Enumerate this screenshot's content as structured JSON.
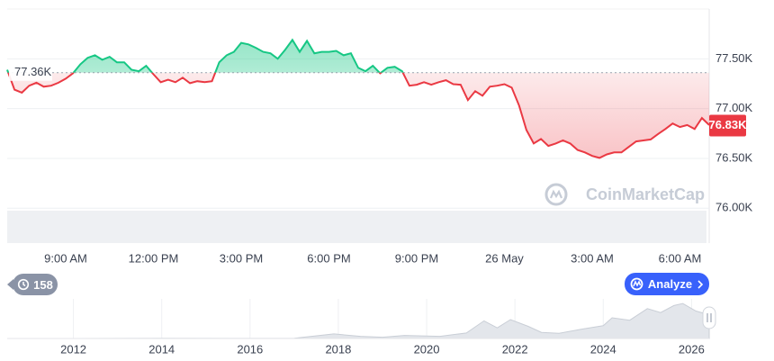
{
  "chart_data": [
    {
      "type": "line",
      "x": [
        7,
        7.25,
        7.5,
        7.75,
        8,
        8.25,
        8.5,
        8.75,
        9,
        9.25,
        9.5,
        9.75,
        10,
        10.25,
        10.5,
        10.75,
        11,
        11.25,
        11.5,
        11.75,
        12,
        12.25,
        12.5,
        12.75,
        13,
        13.25,
        13.5,
        13.75,
        14,
        14.25,
        14.5,
        14.75,
        15,
        15.25,
        15.5,
        15.75,
        16,
        16.25,
        16.5,
        16.75,
        17,
        17.25,
        17.5,
        17.75,
        18,
        18.25,
        18.5,
        18.75,
        19,
        19.25,
        19.5,
        19.75,
        20,
        20.25,
        20.5,
        20.75,
        21,
        21.25,
        21.5,
        21.75,
        22,
        22.25,
        22.5,
        22.75,
        23,
        23.25,
        23.5,
        23.75,
        24,
        24.25,
        24.5,
        24.75,
        25,
        25.25,
        25.5,
        25.75,
        26,
        26.25,
        26.5,
        26.75,
        27,
        27.25,
        27.5,
        27.75,
        28,
        28.25,
        28.5,
        28.75,
        29,
        29.25,
        29.5,
        29.75,
        30,
        30.25,
        30.5,
        30.75,
        31
      ],
      "values": [
        77390,
        77190,
        77160,
        77230,
        77260,
        77220,
        77230,
        77260,
        77300,
        77355,
        77445,
        77510,
        77535,
        77490,
        77520,
        77465,
        77465,
        77390,
        77375,
        77430,
        77345,
        77265,
        77290,
        77265,
        77310,
        77255,
        77275,
        77265,
        77275,
        77465,
        77535,
        77570,
        77660,
        77645,
        77610,
        77570,
        77555,
        77500,
        77590,
        77690,
        77570,
        77680,
        77555,
        77570,
        77570,
        77580,
        77535,
        77555,
        77410,
        77375,
        77430,
        77355,
        77410,
        77420,
        77375,
        77230,
        77240,
        77265,
        77240,
        77265,
        77285,
        77245,
        77240,
        77085,
        77175,
        77130,
        77220,
        77230,
        77245,
        77210,
        77030,
        76785,
        76650,
        76695,
        76625,
        76650,
        76680,
        76650,
        76585,
        76560,
        76525,
        76505,
        76540,
        76560,
        76560,
        76615,
        76670,
        76680,
        76690,
        76745,
        76795,
        76850,
        76815,
        76835,
        76795,
        76905,
        76835
      ],
      "color_up": "#16c784",
      "color_down": "#ea3943",
      "xlim": [
        7,
        31
      ],
      "xticks": [
        {
          "value": 9,
          "label": "9:00 AM"
        },
        {
          "value": 12,
          "label": "12:00 PM"
        },
        {
          "value": 15,
          "label": "3:00 PM"
        },
        {
          "value": 18,
          "label": "6:00 PM"
        },
        {
          "value": 21,
          "label": "9:00 PM"
        },
        {
          "value": 24,
          "label": "26 May"
        },
        {
          "value": 27,
          "label": "3:00 AM"
        },
        {
          "value": 30,
          "label": "6:00 AM"
        }
      ],
      "ylim": [
        75650,
        78000
      ],
      "yticks": [
        {
          "value": 76000,
          "label": "76.00K"
        },
        {
          "value": 76500,
          "label": "76.50K"
        },
        {
          "value": 77000,
          "label": "77.00K"
        },
        {
          "value": 77500,
          "label": "77.50K"
        }
      ],
      "grid": true,
      "baseline": {
        "value": 77360,
        "label": "77.36K"
      },
      "last_price": {
        "value": 76830,
        "label": "76.83K"
      },
      "watermark": "CoinMarketCap"
    },
    {
      "type": "area",
      "x": [
        2010.5,
        2012,
        2014,
        2016,
        2017,
        2017.9,
        2018.5,
        2019,
        2019.5,
        2020,
        2020.3,
        2020.9,
        2021.3,
        2021.6,
        2021.9,
        2022.3,
        2022.6,
        2023,
        2023.5,
        2024,
        2024.2,
        2024.6,
        2025,
        2025.3,
        2025.6,
        2025.8,
        2026.1,
        2026.4
      ],
      "values": [
        0,
        5,
        600,
        400,
        1000,
        15000,
        7000,
        4000,
        10000,
        8000,
        7000,
        18000,
        58000,
        35000,
        62000,
        40000,
        20000,
        17000,
        30000,
        42000,
        68000,
        60000,
        98000,
        85000,
        108000,
        115000,
        90000,
        78000
      ],
      "xlim": [
        2010.5,
        2026.4
      ],
      "xticks": [
        2012,
        2014,
        2016,
        2018,
        2020,
        2022,
        2024,
        2026
      ],
      "ylim": [
        0,
        130000
      ],
      "color": "#e3e6eb",
      "line_color": "#c9ced6"
    }
  ],
  "controls": {
    "history_count": 158,
    "analyze": "Analyze"
  }
}
